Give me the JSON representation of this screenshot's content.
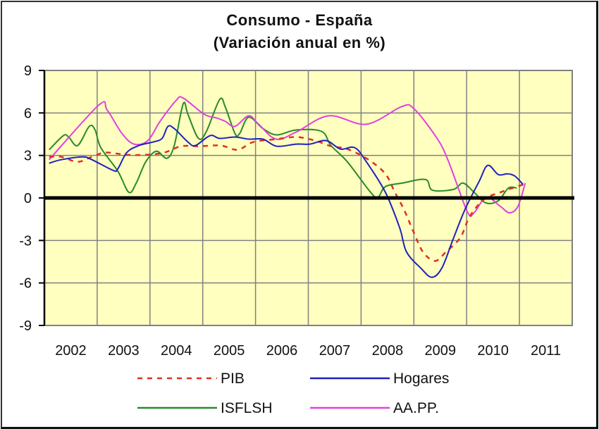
{
  "chart_data": {
    "type": "line",
    "title": "Consumo - España",
    "subtitle": "(Variación anual en %)",
    "xlabel": "",
    "ylabel": "",
    "ylim": [
      -9,
      9
    ],
    "xlim": [
      2002,
      2012
    ],
    "yticks": [
      "9",
      "6",
      "3",
      "0",
      "-3",
      "-6",
      "-9"
    ],
    "ytick_values": [
      9,
      6,
      3,
      0,
      -3,
      -6,
      -9
    ],
    "xticks": [
      "2002",
      "2003",
      "2004",
      "2005",
      "2006",
      "2007",
      "2008",
      "2009",
      "2010",
      "2011"
    ],
    "grid": true,
    "legend_position": "bottom",
    "colors": {
      "plot_bg": "#ffffc0",
      "grid": "#808080",
      "zero_line": "#000000"
    },
    "series": [
      {
        "name": "PIB",
        "color": "#e03020",
        "dash": true,
        "x": [
          2002.09,
          2002.32,
          2002.63,
          2002.9,
          2003.16,
          2003.56,
          2003.92,
          2004.27,
          2004.59,
          2004.94,
          2005.34,
          2005.66,
          2005.96,
          2006.4,
          2006.77,
          2007.13,
          2007.43,
          2007.74,
          2008.14,
          2008.46,
          2008.64,
          2008.81,
          2009.0,
          2009.17,
          2009.4,
          2009.61,
          2009.88,
          2010.06,
          2010.33,
          2010.64,
          2010.95,
          2011.08
        ],
        "y": [
          2.9,
          2.9,
          2.55,
          2.9,
          3.2,
          3.05,
          3.05,
          3.2,
          3.65,
          3.65,
          3.7,
          3.4,
          3.95,
          4.15,
          4.3,
          4.05,
          3.65,
          3.45,
          2.7,
          1.7,
          0.4,
          -0.8,
          -2.45,
          -3.8,
          -4.45,
          -3.8,
          -2.8,
          -1.3,
          -0.1,
          0.4,
          0.8,
          0.95
        ]
      },
      {
        "name": "Hogares",
        "color": "#2020c0",
        "dash": false,
        "x": [
          2002.09,
          2002.32,
          2002.72,
          2002.9,
          2003.3,
          2003.39,
          2003.56,
          2003.79,
          2004.06,
          2004.23,
          2004.34,
          2004.46,
          2004.72,
          2004.86,
          2005.14,
          2005.32,
          2005.61,
          2005.87,
          2006.14,
          2006.4,
          2006.77,
          2007.03,
          2007.34,
          2007.61,
          2007.88,
          2008.1,
          2008.46,
          2008.73,
          2008.86,
          2009.13,
          2009.34,
          2009.53,
          2009.74,
          2009.97,
          2010.24,
          2010.4,
          2010.6,
          2010.77,
          2010.91,
          2011.07
        ],
        "y": [
          2.45,
          2.7,
          2.9,
          2.7,
          1.95,
          2.05,
          3.2,
          3.7,
          3.95,
          4.2,
          5.05,
          4.9,
          3.95,
          3.7,
          4.4,
          4.2,
          4.3,
          4.15,
          4.15,
          3.65,
          3.8,
          3.8,
          4.05,
          3.45,
          3.55,
          2.55,
          0.4,
          -2.1,
          -3.8,
          -4.95,
          -5.6,
          -4.95,
          -2.95,
          -0.8,
          1.2,
          2.3,
          1.65,
          1.7,
          1.55,
          0.95
        ]
      },
      {
        "name": "ISFLSH",
        "color": "#2a8a2a",
        "dash": false,
        "x": [
          2002.09,
          2002.36,
          2002.46,
          2002.63,
          2002.85,
          2002.96,
          2003.07,
          2003.39,
          2003.6,
          2003.74,
          2003.92,
          2004.12,
          2004.32,
          2004.46,
          2004.63,
          2004.72,
          2004.92,
          2005.07,
          2005.32,
          2005.43,
          2005.61,
          2005.7,
          2005.87,
          2006.14,
          2006.4,
          2006.77,
          2007.25,
          2007.43,
          2007.74,
          2008.18,
          2008.32,
          2008.46,
          2008.78,
          2009.22,
          2009.35,
          2009.75,
          2009.93,
          2010.14,
          2010.36,
          2010.6,
          2010.79,
          2010.95
        ],
        "y": [
          3.4,
          4.4,
          4.3,
          3.7,
          5.05,
          4.8,
          3.55,
          1.9,
          0.4,
          1.05,
          2.55,
          3.3,
          2.8,
          3.7,
          6.65,
          5.9,
          4.2,
          4.7,
          6.95,
          6.4,
          4.55,
          4.55,
          5.7,
          4.9,
          4.45,
          4.8,
          4.7,
          3.7,
          2.55,
          0.4,
          0.05,
          0.8,
          1.05,
          1.3,
          0.55,
          0.6,
          1.05,
          0.4,
          -0.35,
          -0.2,
          0.7,
          0.7
        ]
      },
      {
        "name": "AA.PP.",
        "color": "#e040e0",
        "dash": false,
        "x": [
          2002.09,
          2003.03,
          2003.19,
          2003.47,
          2003.7,
          2003.96,
          2004.19,
          2004.5,
          2004.63,
          2005.03,
          2005.26,
          2005.43,
          2005.61,
          2005.87,
          2006.06,
          2006.39,
          2006.77,
          2007.39,
          2008.1,
          2008.77,
          2009.0,
          2009.44,
          2009.66,
          2010.01,
          2010.14,
          2010.37,
          2010.64,
          2010.81,
          2010.97,
          2011.11
        ],
        "y": [
          2.7,
          6.55,
          6.2,
          4.55,
          3.8,
          4.05,
          5.4,
          6.9,
          7.05,
          5.9,
          5.65,
          5.4,
          5.05,
          5.8,
          5.2,
          4.15,
          4.65,
          5.8,
          5.2,
          6.45,
          6.3,
          4.2,
          2.55,
          -0.95,
          -1.05,
          0.05,
          -0.6,
          -1.05,
          -0.6,
          1.05
        ]
      }
    ]
  }
}
